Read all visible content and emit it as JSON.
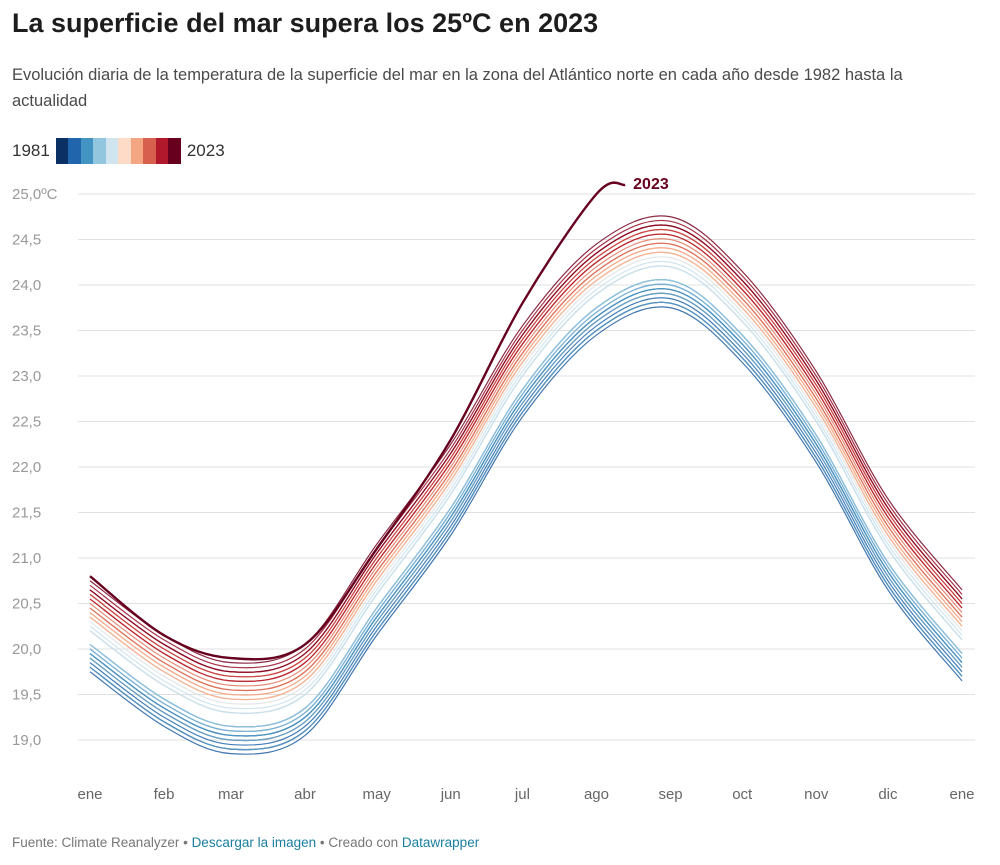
{
  "title": "La superficie del mar supera los 25ºC en 2023",
  "subtitle": "Evolución diaria de la temperatura de la superficie del mar en la zona del Atlántico norte en cada año desde 1982 hasta la actualidad",
  "legend": {
    "start_label": "1981",
    "end_label": "2023",
    "colors": [
      "#0b3064",
      "#2166ac",
      "#4393c3",
      "#92c5de",
      "#d1e5f0",
      "#fddbc7",
      "#f4a582",
      "#d6604d",
      "#b2182b",
      "#67001f"
    ]
  },
  "footer": {
    "source": "Fuente: Climate Reanalyzer",
    "sep1": " • ",
    "download": "Descargar la imagen",
    "sep2": " • Creado con ",
    "tool": "Datawrapper"
  },
  "chart_data": {
    "type": "line",
    "x_unit": "day of year",
    "month_labels": [
      "ene",
      "feb",
      "mar",
      "abr",
      "may",
      "jun",
      "jul",
      "ago",
      "sep",
      "oct",
      "nov",
      "dic",
      "ene"
    ],
    "month_days": [
      0,
      31,
      59,
      90,
      120,
      151,
      181,
      212,
      243,
      273,
      304,
      334,
      365
    ],
    "ylim": [
      18.6,
      25.2
    ],
    "y_ticks": [
      25.0,
      24.5,
      24.0,
      23.5,
      23.0,
      22.5,
      22.0,
      21.5,
      21.0,
      20.5,
      20.0,
      19.5,
      19.0
    ],
    "y_tick_labels": [
      "25,0ºC",
      "24,5",
      "24,0",
      "23,5",
      "23,0",
      "22,5",
      "22,0",
      "21,5",
      "21,0",
      "20,5",
      "20,0",
      "19,5",
      "19,0"
    ],
    "grid": true,
    "highlight_label": "2023",
    "highlight_color": "#67001f",
    "series": [
      {
        "year": 1981,
        "values": [
          19.9,
          19.3,
          19.0,
          19.2,
          20.3,
          21.4,
          22.7,
          23.6,
          23.9,
          23.3,
          22.2,
          20.8,
          19.8
        ]
      },
      {
        "year": 1982,
        "values": [
          19.8,
          19.2,
          18.9,
          19.1,
          20.2,
          21.3,
          22.6,
          23.5,
          23.8,
          23.2,
          22.1,
          20.7,
          19.7
        ]
      },
      {
        "year": 1983,
        "values": [
          19.95,
          19.35,
          19.05,
          19.25,
          20.35,
          21.45,
          22.75,
          23.65,
          23.95,
          23.35,
          22.25,
          20.85,
          19.85
        ]
      },
      {
        "year": 1984,
        "values": [
          19.8,
          19.2,
          18.9,
          19.1,
          20.2,
          21.3,
          22.6,
          23.5,
          23.8,
          23.2,
          22.1,
          20.7,
          19.7
        ]
      },
      {
        "year": 1985,
        "values": [
          19.75,
          19.15,
          18.85,
          19.05,
          20.15,
          21.25,
          22.55,
          23.45,
          23.75,
          23.15,
          22.05,
          20.65,
          19.65
        ]
      },
      {
        "year": 1986,
        "values": [
          19.85,
          19.25,
          18.95,
          19.15,
          20.25,
          21.35,
          22.65,
          23.55,
          23.85,
          23.25,
          22.15,
          20.75,
          19.75
        ]
      },
      {
        "year": 1987,
        "values": [
          20.0,
          19.4,
          19.1,
          19.3,
          20.4,
          21.5,
          22.8,
          23.7,
          24.0,
          23.4,
          22.3,
          20.9,
          19.9
        ]
      },
      {
        "year": 1988,
        "values": [
          20.05,
          19.45,
          19.15,
          19.35,
          20.45,
          21.55,
          22.85,
          23.75,
          24.05,
          23.45,
          22.35,
          20.95,
          19.95
        ]
      },
      {
        "year": 1989,
        "values": [
          19.95,
          19.35,
          19.05,
          19.25,
          20.35,
          21.45,
          22.75,
          23.65,
          23.95,
          23.35,
          22.25,
          20.85,
          19.85
        ]
      },
      {
        "year": 1990,
        "values": [
          20.05,
          19.45,
          19.15,
          19.35,
          20.45,
          21.55,
          22.85,
          23.75,
          24.05,
          23.45,
          22.35,
          20.95,
          19.95
        ]
      },
      {
        "year": 1991,
        "values": [
          19.95,
          19.35,
          19.05,
          19.25,
          20.35,
          21.45,
          22.75,
          23.65,
          23.95,
          23.35,
          22.25,
          20.85,
          19.85
        ]
      },
      {
        "year": 1992,
        "values": [
          19.8,
          19.2,
          18.9,
          19.1,
          20.2,
          21.3,
          22.6,
          23.5,
          23.8,
          23.2,
          22.1,
          20.7,
          19.7
        ]
      },
      {
        "year": 1993,
        "values": [
          19.9,
          19.3,
          19.0,
          19.2,
          20.3,
          21.4,
          22.7,
          23.6,
          23.9,
          23.3,
          22.2,
          20.8,
          19.8
        ]
      },
      {
        "year": 1994,
        "values": [
          20.0,
          19.4,
          19.1,
          19.3,
          20.4,
          21.5,
          22.8,
          23.7,
          24.0,
          23.4,
          22.3,
          20.9,
          19.9
        ]
      },
      {
        "year": 1995,
        "values": [
          20.2,
          19.6,
          19.3,
          19.5,
          20.6,
          21.7,
          23.0,
          23.9,
          24.2,
          23.6,
          22.5,
          21.1,
          20.1
        ]
      },
      {
        "year": 1996,
        "values": [
          20.05,
          19.45,
          19.15,
          19.35,
          20.45,
          21.55,
          22.85,
          23.75,
          24.05,
          23.45,
          22.35,
          20.95,
          19.95
        ]
      },
      {
        "year": 1997,
        "values": [
          20.2,
          19.6,
          19.3,
          19.5,
          20.6,
          21.7,
          23.0,
          23.9,
          24.2,
          23.6,
          22.5,
          21.1,
          20.1
        ]
      },
      {
        "year": 1998,
        "values": [
          20.35,
          19.75,
          19.45,
          19.65,
          20.75,
          21.85,
          23.15,
          24.05,
          24.35,
          23.75,
          22.65,
          21.25,
          20.25
        ]
      },
      {
        "year": 1999,
        "values": [
          20.25,
          19.65,
          19.35,
          19.55,
          20.65,
          21.75,
          23.05,
          23.95,
          24.25,
          23.65,
          22.55,
          21.15,
          20.15
        ]
      },
      {
        "year": 2000,
        "values": [
          20.2,
          19.6,
          19.3,
          19.5,
          20.6,
          21.7,
          23.0,
          23.9,
          24.2,
          23.6,
          22.5,
          21.1,
          20.1
        ]
      },
      {
        "year": 2001,
        "values": [
          20.3,
          19.7,
          19.4,
          19.6,
          20.7,
          21.8,
          23.1,
          24.0,
          24.3,
          23.7,
          22.6,
          21.2,
          20.2
        ]
      },
      {
        "year": 2002,
        "values": [
          20.35,
          19.75,
          19.45,
          19.65,
          20.75,
          21.85,
          23.15,
          24.05,
          24.35,
          23.75,
          22.65,
          21.25,
          20.25
        ]
      },
      {
        "year": 2003,
        "values": [
          20.4,
          19.8,
          19.5,
          19.7,
          20.8,
          21.9,
          23.2,
          24.1,
          24.4,
          23.8,
          22.7,
          21.3,
          20.3
        ]
      },
      {
        "year": 2004,
        "values": [
          20.35,
          19.75,
          19.45,
          19.65,
          20.75,
          21.85,
          23.15,
          24.05,
          24.35,
          23.75,
          22.65,
          21.25,
          20.25
        ]
      },
      {
        "year": 2005,
        "values": [
          20.45,
          19.85,
          19.55,
          19.75,
          20.85,
          21.95,
          23.25,
          24.15,
          24.45,
          23.85,
          22.75,
          21.35,
          20.35
        ]
      },
      {
        "year": 2006,
        "values": [
          20.4,
          19.8,
          19.5,
          19.7,
          20.8,
          21.9,
          23.2,
          24.1,
          24.4,
          23.8,
          22.7,
          21.3,
          20.3
        ]
      },
      {
        "year": 2007,
        "values": [
          20.35,
          19.75,
          19.45,
          19.65,
          20.75,
          21.85,
          23.15,
          24.05,
          24.35,
          23.75,
          22.65,
          21.25,
          20.25
        ]
      },
      {
        "year": 2008,
        "values": [
          20.35,
          19.75,
          19.45,
          19.65,
          20.75,
          21.85,
          23.15,
          24.05,
          24.35,
          23.75,
          22.65,
          21.25,
          20.25
        ]
      },
      {
        "year": 2009,
        "values": [
          20.4,
          19.8,
          19.5,
          19.7,
          20.8,
          21.9,
          23.2,
          24.1,
          24.4,
          23.8,
          22.7,
          21.3,
          20.3
        ]
      },
      {
        "year": 2010,
        "values": [
          20.55,
          19.95,
          19.65,
          19.85,
          20.95,
          22.05,
          23.35,
          24.25,
          24.55,
          23.95,
          22.85,
          21.45,
          20.45
        ]
      },
      {
        "year": 2011,
        "values": [
          20.45,
          19.85,
          19.55,
          19.75,
          20.85,
          21.95,
          23.25,
          24.15,
          24.45,
          23.85,
          22.75,
          21.35,
          20.35
        ]
      },
      {
        "year": 2012,
        "values": [
          20.5,
          19.9,
          19.6,
          19.8,
          20.9,
          22.0,
          23.3,
          24.2,
          24.5,
          23.9,
          22.8,
          21.4,
          20.4
        ]
      },
      {
        "year": 2013,
        "values": [
          20.45,
          19.85,
          19.55,
          19.75,
          20.85,
          21.95,
          23.25,
          24.15,
          24.45,
          23.85,
          22.75,
          21.35,
          20.35
        ]
      },
      {
        "year": 2014,
        "values": [
          20.6,
          20.0,
          19.7,
          19.9,
          21.0,
          22.1,
          23.4,
          24.3,
          24.6,
          24.0,
          22.9,
          21.5,
          20.5
        ]
      },
      {
        "year": 2015,
        "values": [
          20.55,
          19.95,
          19.65,
          19.85,
          20.95,
          22.05,
          23.35,
          24.25,
          24.55,
          23.95,
          22.85,
          21.45,
          20.45
        ]
      },
      {
        "year": 2016,
        "values": [
          20.6,
          20.0,
          19.7,
          19.9,
          21.0,
          22.1,
          23.4,
          24.3,
          24.6,
          24.0,
          22.9,
          21.5,
          20.5
        ]
      },
      {
        "year": 2017,
        "values": [
          20.65,
          20.05,
          19.75,
          19.95,
          21.05,
          22.15,
          23.45,
          24.35,
          24.65,
          24.05,
          22.95,
          21.55,
          20.55
        ]
      },
      {
        "year": 2018,
        "values": [
          20.55,
          19.95,
          19.65,
          19.85,
          20.95,
          22.05,
          23.35,
          24.25,
          24.55,
          23.95,
          22.85,
          21.45,
          20.45
        ]
      },
      {
        "year": 2019,
        "values": [
          20.65,
          20.05,
          19.75,
          19.95,
          21.05,
          22.15,
          23.45,
          24.35,
          24.65,
          24.05,
          22.95,
          21.55,
          20.55
        ]
      },
      {
        "year": 2020,
        "values": [
          20.7,
          20.1,
          19.8,
          20.0,
          21.1,
          22.2,
          23.5,
          24.4,
          24.7,
          24.1,
          23.0,
          21.6,
          20.6
        ]
      },
      {
        "year": 2021,
        "values": [
          20.65,
          20.05,
          19.75,
          19.95,
          21.05,
          22.15,
          23.45,
          24.35,
          24.65,
          24.05,
          22.95,
          21.55,
          20.55
        ]
      },
      {
        "year": 2022,
        "values": [
          20.75,
          20.15,
          19.85,
          20.05,
          21.15,
          22.25,
          23.55,
          24.45,
          24.75,
          24.15,
          23.05,
          21.65,
          20.65
        ]
      },
      {
        "year": 2023,
        "days": [
          0,
          31,
          59,
          90,
          120,
          151,
          181,
          212,
          224
        ],
        "values": [
          20.8,
          20.15,
          19.9,
          20.05,
          21.1,
          22.3,
          23.8,
          25.0,
          25.1
        ]
      }
    ]
  }
}
